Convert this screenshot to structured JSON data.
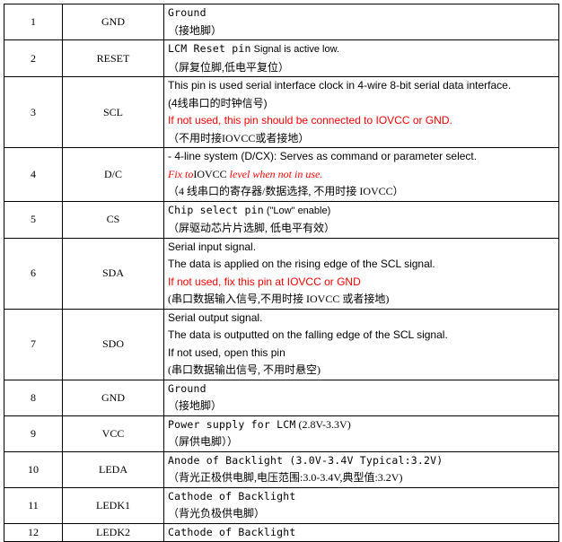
{
  "pins": [
    {
      "num": "1",
      "name": "GND",
      "lines": [
        "Ground",
        "（接地脚）"
      ]
    },
    {
      "num": "2",
      "name": "RESET",
      "line1_a": "LCM Reset pin",
      "line1_b": "Signal is active low.",
      "line2": "（屏复位脚,低电平复位）"
    },
    {
      "num": "3",
      "name": "SCL",
      "lines": [
        "This pin is used serial interface clock in 4-wire 8-bit serial data interface.",
        "(4线串口的时钟信号)",
        "If not used, this pin should be connected to IOVCC or GND.",
        "（不用时接IOVCC或者接地）"
      ]
    },
    {
      "num": "4",
      "name": "D/C",
      "lines": [
        "- 4-line system (D/CX): Serves as command or parameter select.",
        "（4 线串口的寄存器/数据选择, 不用时接 IOVCC）"
      ],
      "fix_a": "Fix to",
      "fix_b": "IOVCC",
      "fix_c": "level when not in use."
    },
    {
      "num": "5",
      "name": "CS",
      "line1_a": "Chip select pin",
      "line1_b": "(\"Low\" enable)",
      "line2": "（屏驱动芯片片选脚, 低电平有效）"
    },
    {
      "num": "6",
      "name": "SDA",
      "lines": [
        "Serial input signal.",
        "The data is applied on the rising edge of the SCL signal.",
        "If not used, fix this pin at IOVCC or GND",
        "(串口数据输入信号,不用时接 IOVCC 或者接地)"
      ]
    },
    {
      "num": "7",
      "name": "SDO",
      "lines": [
        "Serial output signal.",
        "The data is outputted on the falling edge of the SCL signal.",
        "If not used, open this pin",
        "(串口数据输出信号, 不用时悬空)"
      ]
    },
    {
      "num": "8",
      "name": "GND",
      "lines": [
        "Ground",
        "（接地脚）"
      ]
    },
    {
      "num": "9",
      "name": "VCC",
      "line1_a": "Power supply for LCM",
      "line1_b": "(2.8V-3.3V)",
      "line2": "（屏供电脚））"
    },
    {
      "num": "10",
      "name": "LEDA",
      "lines": [
        "Anode of Backlight (3.0V-3.4V Typical:3.2V)",
        "（背光正极供电脚,电压范围:3.0-3.4V,典型值:3.2V)"
      ]
    },
    {
      "num": "11",
      "name": "LEDK1",
      "lines": [
        "Cathode of Backlight",
        "（背光负极供电脚）"
      ]
    },
    {
      "num": "12",
      "name": "LEDK2",
      "lines": [
        "Cathode of Backlight"
      ]
    }
  ]
}
